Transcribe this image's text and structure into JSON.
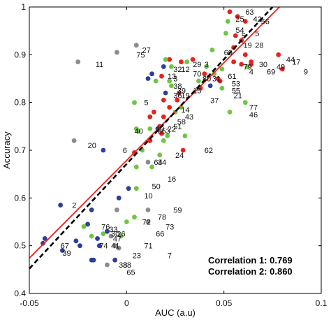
{
  "chart_data": {
    "type": "scatter",
    "xlabel": "AUC (a.u)",
    "ylabel": "Accuracy",
    "xlim": [
      -0.05,
      0.1
    ],
    "ylim": [
      0.4,
      1.0
    ],
    "xticks": [
      -0.05,
      0,
      0.05,
      0.1
    ],
    "xtick_labels": [
      "-0.05",
      "0",
      "0.05",
      "0.1"
    ],
    "yticks": [
      0.4,
      0.5,
      0.6,
      0.7,
      0.8,
      0.9,
      1.0
    ],
    "ytick_labels": [
      "0.4",
      "0.5",
      "0.6",
      "0.7",
      "0.8",
      "0.9",
      "1"
    ],
    "grid": false,
    "colors": {
      "red": "#e8211c",
      "green": "#6cc644",
      "blue": "#2a3f9e",
      "gray": "#8c8c8c",
      "fit1": "#e8211c",
      "fit2": "#000000"
    },
    "fit_lines": [
      {
        "style": "solid",
        "color": "red",
        "x": [
          -0.05,
          0.0785
        ],
        "y": [
          0.474,
          1.0
        ]
      },
      {
        "style": "dashed",
        "color": "black",
        "x": [
          -0.05,
          0.075
        ],
        "y": [
          0.452,
          1.0
        ]
      }
    ],
    "annotations": [
      "Correlation 1: 0.769",
      "Correlation 2: 0.860"
    ],
    "points": [
      {
        "x": 0.053,
        "y": 0.99,
        "c": "red"
      },
      {
        "x": 0.057,
        "y": 0.98,
        "c": "red"
      },
      {
        "x": 0.052,
        "y": 0.97,
        "c": "green"
      },
      {
        "x": 0.061,
        "y": 0.97,
        "c": "red"
      },
      {
        "x": 0.051,
        "y": 0.945,
        "c": "green"
      },
      {
        "x": 0.056,
        "y": 0.94,
        "c": "red"
      },
      {
        "x": 0.059,
        "y": 0.93,
        "c": "red"
      },
      {
        "x": 0.055,
        "y": 0.915,
        "c": "red"
      },
      {
        "x": 0.044,
        "y": 0.91,
        "c": "green"
      },
      {
        "x": 0.061,
        "y": 0.9,
        "c": "red"
      },
      {
        "x": 0.055,
        "y": 0.885,
        "c": "red"
      },
      {
        "x": 0.059,
        "y": 0.88,
        "c": "red"
      },
      {
        "x": 0.062,
        "y": 0.875,
        "c": "green"
      },
      {
        "x": 0.049,
        "y": 0.87,
        "c": "green"
      },
      {
        "x": 0.064,
        "y": 0.885,
        "c": "red"
      },
      {
        "x": 0.064,
        "y": 0.88,
        "c": "red"
      },
      {
        "x": 0.08,
        "y": 0.87,
        "c": "red"
      },
      {
        "x": 0.078,
        "y": 0.9,
        "c": "red"
      },
      {
        "x": 0.047,
        "y": 0.85,
        "c": "red"
      },
      {
        "x": 0.041,
        "y": 0.875,
        "c": "green"
      },
      {
        "x": 0.045,
        "y": 0.86,
        "c": "green"
      },
      {
        "x": 0.048,
        "y": 0.845,
        "c": "red"
      },
      {
        "x": 0.049,
        "y": 0.83,
        "c": "green"
      },
      {
        "x": 0.04,
        "y": 0.86,
        "c": "red"
      },
      {
        "x": 0.043,
        "y": 0.835,
        "c": "blue"
      },
      {
        "x": 0.037,
        "y": 0.845,
        "c": "green"
      },
      {
        "x": 0.038,
        "y": 0.83,
        "c": "red"
      },
      {
        "x": 0.034,
        "y": 0.89,
        "c": "red"
      },
      {
        "x": 0.031,
        "y": 0.885,
        "c": "green"
      },
      {
        "x": 0.028,
        "y": 0.885,
        "c": "red"
      },
      {
        "x": 0.022,
        "y": 0.89,
        "c": "red"
      },
      {
        "x": 0.02,
        "y": 0.89,
        "c": "green"
      },
      {
        "x": 0.019,
        "y": 0.875,
        "c": "blue"
      },
      {
        "x": 0.023,
        "y": 0.875,
        "c": "green"
      },
      {
        "x": 0.018,
        "y": 0.855,
        "c": "red"
      },
      {
        "x": 0.022,
        "y": 0.845,
        "c": "green"
      },
      {
        "x": 0.023,
        "y": 0.835,
        "c": "green"
      },
      {
        "x": 0.027,
        "y": 0.82,
        "c": "red"
      },
      {
        "x": 0.026,
        "y": 0.805,
        "c": "red"
      },
      {
        "x": 0.02,
        "y": 0.82,
        "c": "blue"
      },
      {
        "x": 0.019,
        "y": 0.805,
        "c": "red"
      },
      {
        "x": 0.022,
        "y": 0.79,
        "c": "red"
      },
      {
        "x": 0.028,
        "y": 0.79,
        "c": "green"
      },
      {
        "x": 0.025,
        "y": 0.78,
        "c": "green"
      },
      {
        "x": 0.019,
        "y": 0.77,
        "c": "red"
      },
      {
        "x": 0.014,
        "y": 0.78,
        "c": "red"
      },
      {
        "x": 0.012,
        "y": 0.77,
        "c": "red"
      },
      {
        "x": 0.017,
        "y": 0.75,
        "c": "red"
      },
      {
        "x": 0.016,
        "y": 0.745,
        "c": "blue"
      },
      {
        "x": 0.012,
        "y": 0.745,
        "c": "green"
      },
      {
        "x": 0.005,
        "y": 0.745,
        "c": "green"
      },
      {
        "x": 0.004,
        "y": 0.8,
        "c": "green"
      },
      {
        "x": 0.017,
        "y": 0.69,
        "c": "green"
      },
      {
        "x": 0.019,
        "y": 0.72,
        "c": "green"
      },
      {
        "x": 0.021,
        "y": 0.73,
        "c": "green"
      },
      {
        "x": 0.03,
        "y": 0.73,
        "c": "green"
      },
      {
        "x": 0.053,
        "y": 0.78,
        "c": "green"
      },
      {
        "x": 0.061,
        "y": 0.8,
        "c": "green"
      },
      {
        "x": 0.029,
        "y": 0.7,
        "c": "red"
      },
      {
        "x": 0.012,
        "y": 0.72,
        "c": "red"
      },
      {
        "x": 0.018,
        "y": 0.735,
        "c": "red"
      },
      {
        "x": 0.011,
        "y": 0.85,
        "c": "blue"
      },
      {
        "x": 0.013,
        "y": 0.86,
        "c": "blue"
      },
      {
        "x": 0.015,
        "y": 0.845,
        "c": "green"
      },
      {
        "x": 0.006,
        "y": 0.74,
        "c": "green"
      },
      {
        "x": 0.008,
        "y": 0.7,
        "c": "green"
      },
      {
        "x": 0.005,
        "y": 0.665,
        "c": "green"
      },
      {
        "x": 0.013,
        "y": 0.665,
        "c": "green"
      },
      {
        "x": 0.011,
        "y": 0.675,
        "c": "gray"
      },
      {
        "x": 0.004,
        "y": 0.695,
        "c": "red"
      },
      {
        "x": 0.005,
        "y": 0.62,
        "c": "green"
      },
      {
        "x": 0.001,
        "y": 0.62,
        "c": "blue"
      },
      {
        "x": -0.004,
        "y": 0.6,
        "c": "blue"
      },
      {
        "x": -0.005,
        "y": 0.575,
        "c": "gray"
      },
      {
        "x": 0.0,
        "y": 0.55,
        "c": "green"
      },
      {
        "x": -0.003,
        "y": 0.52,
        "c": "green"
      },
      {
        "x": 0.004,
        "y": 0.56,
        "c": "green"
      },
      {
        "x": 0.011,
        "y": 0.575,
        "c": "gray"
      },
      {
        "x": 0.011,
        "y": 0.55,
        "c": "gray"
      },
      {
        "x": -0.012,
        "y": 0.7,
        "c": "blue"
      },
      {
        "x": -0.027,
        "y": 0.72,
        "c": "gray"
      },
      {
        "x": -0.025,
        "y": 0.885,
        "c": "gray"
      },
      {
        "x": -0.005,
        "y": 0.905,
        "c": "gray"
      },
      {
        "x": 0.005,
        "y": 0.92,
        "c": "gray"
      },
      {
        "x": -0.034,
        "y": 0.585,
        "c": "blue"
      },
      {
        "x": -0.018,
        "y": 0.575,
        "c": "blue"
      },
      {
        "x": -0.02,
        "y": 0.545,
        "c": "blue"
      },
      {
        "x": -0.022,
        "y": 0.54,
        "c": "green"
      },
      {
        "x": -0.018,
        "y": 0.52,
        "c": "green"
      },
      {
        "x": -0.015,
        "y": 0.515,
        "c": "blue"
      },
      {
        "x": -0.012,
        "y": 0.525,
        "c": "green"
      },
      {
        "x": -0.01,
        "y": 0.53,
        "c": "blue"
      },
      {
        "x": -0.014,
        "y": 0.5,
        "c": "blue"
      },
      {
        "x": -0.024,
        "y": 0.5,
        "c": "blue"
      },
      {
        "x": -0.042,
        "y": 0.515,
        "c": "blue"
      },
      {
        "x": -0.043,
        "y": 0.505,
        "c": "blue"
      },
      {
        "x": -0.033,
        "y": 0.49,
        "c": "blue"
      },
      {
        "x": -0.026,
        "y": 0.51,
        "c": "blue"
      },
      {
        "x": -0.006,
        "y": 0.5,
        "c": "gray"
      },
      {
        "x": -0.004,
        "y": 0.495,
        "c": "gray"
      },
      {
        "x": -0.018,
        "y": 0.47,
        "c": "blue"
      },
      {
        "x": -0.017,
        "y": 0.47,
        "c": "blue"
      },
      {
        "x": -0.01,
        "y": 0.46,
        "c": "gray"
      },
      {
        "x": -0.006,
        "y": 0.47,
        "c": "blue"
      },
      {
        "x": -0.008,
        "y": 0.52,
        "c": "gray"
      }
    ],
    "labels": [
      {
        "x": 0.061,
        "y": 0.99,
        "t": "63"
      },
      {
        "x": 0.056,
        "y": 0.975,
        "t": "25"
      },
      {
        "x": 0.065,
        "y": 0.975,
        "t": "42"
      },
      {
        "x": 0.069,
        "y": 0.97,
        "t": "56"
      },
      {
        "x": 0.056,
        "y": 0.952,
        "t": "54"
      },
      {
        "x": 0.059,
        "y": 0.94,
        "t": "5"
      },
      {
        "x": 0.066,
        "y": 0.945,
        "t": "5"
      },
      {
        "x": 0.06,
        "y": 0.92,
        "t": "19"
      },
      {
        "x": 0.066,
        "y": 0.92,
        "t": "28"
      },
      {
        "x": 0.05,
        "y": 0.905,
        "t": "60"
      },
      {
        "x": 0.068,
        "y": 0.88,
        "t": "30"
      },
      {
        "x": 0.06,
        "y": 0.875,
        "t": "79"
      },
      {
        "x": 0.063,
        "y": 0.865,
        "t": "4"
      },
      {
        "x": 0.072,
        "y": 0.865,
        "t": "69"
      },
      {
        "x": 0.077,
        "y": 0.875,
        "t": "49"
      },
      {
        "x": 0.082,
        "y": 0.89,
        "t": "44"
      },
      {
        "x": 0.085,
        "y": 0.885,
        "t": "17"
      },
      {
        "x": 0.091,
        "y": 0.865,
        "t": "9"
      },
      {
        "x": 0.008,
        "y": 0.91,
        "t": "27"
      },
      {
        "x": 0.005,
        "y": 0.9,
        "t": "75"
      },
      {
        "x": -0.016,
        "y": 0.88,
        "t": "11"
      },
      {
        "x": 0.034,
        "y": 0.88,
        "t": "29"
      },
      {
        "x": 0.04,
        "y": 0.88,
        "t": "3"
      },
      {
        "x": 0.024,
        "y": 0.87,
        "t": "32"
      },
      {
        "x": 0.028,
        "y": 0.87,
        "t": "12"
      },
      {
        "x": 0.021,
        "y": 0.855,
        "t": "13"
      },
      {
        "x": 0.024,
        "y": 0.85,
        "t": "3"
      },
      {
        "x": 0.034,
        "y": 0.86,
        "t": "70"
      },
      {
        "x": 0.044,
        "y": 0.85,
        "t": "31"
      },
      {
        "x": 0.039,
        "y": 0.85,
        "t": "80"
      },
      {
        "x": 0.052,
        "y": 0.855,
        "t": "61"
      },
      {
        "x": 0.054,
        "y": 0.84,
        "t": "53"
      },
      {
        "x": 0.024,
        "y": 0.835,
        "t": "38"
      },
      {
        "x": 0.026,
        "y": 0.825,
        "t": "39"
      },
      {
        "x": 0.024,
        "y": 0.815,
        "t": "36"
      },
      {
        "x": 0.028,
        "y": 0.815,
        "t": "19"
      },
      {
        "x": 0.034,
        "y": 0.825,
        "t": "15"
      },
      {
        "x": 0.054,
        "y": 0.825,
        "t": "55"
      },
      {
        "x": 0.055,
        "y": 0.815,
        "t": "21"
      },
      {
        "x": 0.043,
        "y": 0.805,
        "t": "37"
      },
      {
        "x": 0.009,
        "y": 0.8,
        "t": "5"
      },
      {
        "x": 0.028,
        "y": 0.785,
        "t": "14"
      },
      {
        "x": 0.03,
        "y": 0.77,
        "t": "43"
      },
      {
        "x": 0.026,
        "y": 0.76,
        "t": "58"
      },
      {
        "x": 0.063,
        "y": 0.79,
        "t": "77"
      },
      {
        "x": 0.063,
        "y": 0.775,
        "t": "46"
      },
      {
        "x": 0.024,
        "y": 0.75,
        "t": "51"
      },
      {
        "x": 0.021,
        "y": 0.745,
        "t": "22"
      },
      {
        "x": 0.018,
        "y": 0.74,
        "t": "53"
      },
      {
        "x": 0.016,
        "y": 0.74,
        "t": "8"
      },
      {
        "x": 0.015,
        "y": 0.745,
        "t": "10"
      },
      {
        "x": 0.004,
        "y": 0.74,
        "t": "40"
      },
      {
        "x": -0.02,
        "y": 0.71,
        "t": "20"
      },
      {
        "x": -0.002,
        "y": 0.7,
        "t": "6"
      },
      {
        "x": 0.04,
        "y": 0.7,
        "t": "62"
      },
      {
        "x": 0.025,
        "y": 0.69,
        "t": "24"
      },
      {
        "x": 0.014,
        "y": 0.675,
        "t": "64"
      },
      {
        "x": 0.016,
        "y": 0.675,
        "t": "34"
      },
      {
        "x": 0.021,
        "y": 0.64,
        "t": "16"
      },
      {
        "x": 0.013,
        "y": 0.625,
        "t": "50"
      },
      {
        "x": 0.009,
        "y": 0.605,
        "t": "10"
      },
      {
        "x": -0.028,
        "y": 0.585,
        "t": "2"
      },
      {
        "x": 0.024,
        "y": 0.575,
        "t": "59"
      },
      {
        "x": 0.016,
        "y": 0.56,
        "t": "78"
      },
      {
        "x": 0.008,
        "y": 0.55,
        "t": "72"
      },
      {
        "x": 0.02,
        "y": 0.54,
        "t": "73"
      },
      {
        "x": -0.013,
        "y": 0.54,
        "t": "76"
      },
      {
        "x": -0.009,
        "y": 0.535,
        "t": "33"
      },
      {
        "x": -0.008,
        "y": 0.525,
        "t": "30"
      },
      {
        "x": -0.005,
        "y": 0.525,
        "t": "26"
      },
      {
        "x": -0.007,
        "y": 0.515,
        "t": "47"
      },
      {
        "x": 0.015,
        "y": 0.525,
        "t": "66"
      },
      {
        "x": -0.034,
        "y": 0.5,
        "t": "67"
      },
      {
        "x": -0.014,
        "y": 0.5,
        "t": "74"
      },
      {
        "x": -0.008,
        "y": 0.5,
        "t": "41"
      },
      {
        "x": 0.009,
        "y": 0.5,
        "t": "71"
      },
      {
        "x": -0.033,
        "y": 0.485,
        "t": "39"
      },
      {
        "x": 0.003,
        "y": 0.48,
        "t": "23"
      },
      {
        "x": 0.021,
        "y": 0.48,
        "t": "7"
      },
      {
        "x": -0.004,
        "y": 0.46,
        "t": "38"
      },
      {
        "x": -0.002,
        "y": 0.46,
        "t": "38"
      },
      {
        "x": 0.0,
        "y": 0.445,
        "t": "65"
      }
    ]
  }
}
